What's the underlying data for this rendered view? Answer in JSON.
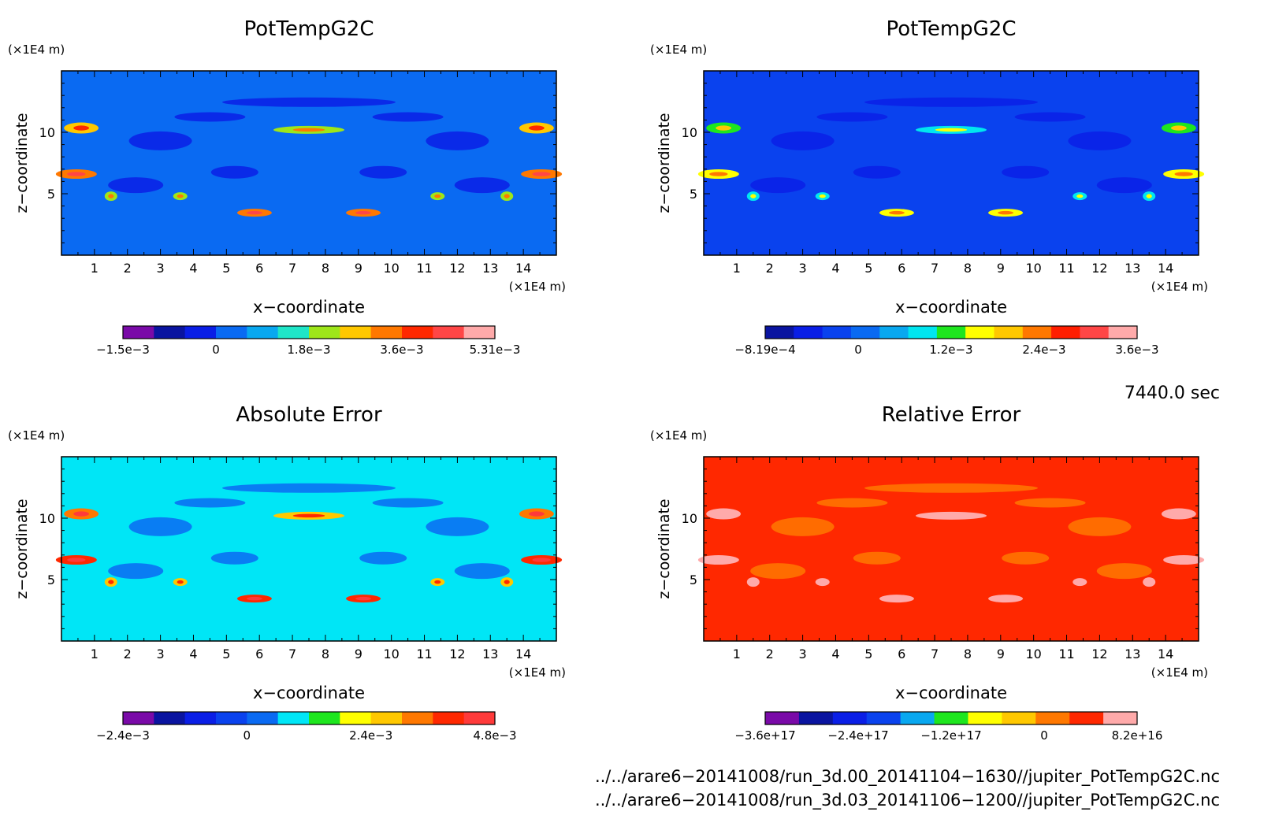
{
  "panels": [
    {
      "title": "PotTempG2C",
      "y_unit": "(×1E4 m)",
      "x_unit": "(×1E4 m)",
      "xlabel": "x−coordinate",
      "ylabel": "z−coordinate",
      "base_color": "#0a6af2",
      "colorbar": {
        "colors": [
          "#7a0aa8",
          "#0a14a0",
          "#0a1ee6",
          "#0a6af2",
          "#09a8f0",
          "#1fe6c8",
          "#9ee61a",
          "#ffc800",
          "#ff7800",
          "#ff2800",
          "#ff4646",
          "#ffaaaa"
        ],
        "labels": [
          "−1.5e−3",
          "0",
          "1.8e−3",
          "3.6e−3",
          "5.31e−3"
        ]
      }
    },
    {
      "title": "PotTempG2C",
      "y_unit": "(×1E4 m)",
      "x_unit": "(×1E4 m)",
      "xlabel": "x−coordinate",
      "ylabel": "z−coordinate",
      "base_color": "#0a42ee",
      "colorbar": {
        "colors": [
          "#0a14a0",
          "#0a1ee6",
          "#0a42ee",
          "#0a6af2",
          "#09a8f0",
          "#00e6f0",
          "#1ee61e",
          "#ffff00",
          "#ffc800",
          "#ff7800",
          "#ff1e00",
          "#ff4646",
          "#ffaaaa"
        ],
        "labels": [
          "−8.19e−4",
          "0",
          "1.2e−3",
          "2.4e−3",
          "3.6e−3"
        ]
      }
    },
    {
      "title": "Absolute Error",
      "y_unit": "(×1E4 m)",
      "x_unit": "(×1E4 m)",
      "xlabel": "x−coordinate",
      "ylabel": "z−coordinate",
      "base_color": "#00e6f6",
      "colorbar": {
        "colors": [
          "#7a0aa8",
          "#0a14a0",
          "#0a1ee6",
          "#0a42ee",
          "#0a6af2",
          "#00e6f6",
          "#1ee61e",
          "#ffff00",
          "#ffc800",
          "#ff7800",
          "#ff2800",
          "#ff3a3a"
        ],
        "labels": [
          "−2.4e−3",
          "0",
          "2.4e−3",
          "4.8e−3"
        ]
      }
    },
    {
      "title": "Relative Error",
      "y_unit": "(×1E4 m)",
      "x_unit": "(×1E4 m)",
      "xlabel": "x−coordinate",
      "ylabel": "z−coordinate",
      "base_color": "#ff2800",
      "colorbar": {
        "colors": [
          "#7a0aa8",
          "#0a14a0",
          "#0a1ee6",
          "#0a42ee",
          "#09a8f0",
          "#1ee61e",
          "#ffff00",
          "#ffc800",
          "#ff7800",
          "#ff2800",
          "#ffaaaa"
        ],
        "labels": [
          "−3.6e+17",
          "−2.4e+17",
          "−1.2e+17",
          "0",
          "8.2e+16"
        ]
      }
    }
  ],
  "time_label": "7440.0 sec",
  "file_paths": [
    "../../arare6−20141008/run_3d.00_20141104−1630//jupiter_PotTempG2C.nc",
    "../../arare6−20141008/run_3d.03_20141106−1200//jupiter_PotTempG2C.nc"
  ],
  "chart_data": [
    {
      "type": "heatmap",
      "title": "PotTempG2C",
      "xlabel": "x−coordinate",
      "ylabel": "z−coordinate",
      "x_ticks": [
        1,
        2,
        3,
        4,
        5,
        6,
        7,
        8,
        9,
        10,
        11,
        12,
        13,
        14
      ],
      "y_ticks": [
        5,
        10
      ],
      "xlim": [
        0,
        15
      ],
      "ylim": [
        0,
        15
      ],
      "colorbar_labels": [
        "−1.5e−3",
        "0",
        "1.8e−3",
        "3.6e−3",
        "5.31e−3"
      ]
    },
    {
      "type": "heatmap",
      "title": "PotTempG2C",
      "xlabel": "x−coordinate",
      "ylabel": "z−coordinate",
      "x_ticks": [
        1,
        2,
        3,
        4,
        5,
        6,
        7,
        8,
        9,
        10,
        11,
        12,
        13,
        14
      ],
      "y_ticks": [
        5,
        10
      ],
      "xlim": [
        0,
        15
      ],
      "ylim": [
        0,
        15
      ],
      "colorbar_labels": [
        "−8.19e−4",
        "0",
        "1.2e−3",
        "2.4e−3",
        "3.6e−3"
      ]
    },
    {
      "type": "heatmap",
      "title": "Absolute Error",
      "xlabel": "x−coordinate",
      "ylabel": "z−coordinate",
      "x_ticks": [
        1,
        2,
        3,
        4,
        5,
        6,
        7,
        8,
        9,
        10,
        11,
        12,
        13,
        14
      ],
      "y_ticks": [
        5,
        10
      ],
      "xlim": [
        0,
        15
      ],
      "ylim": [
        0,
        15
      ],
      "colorbar_labels": [
        "−2.4e−3",
        "0",
        "2.4e−3",
        "4.8e−3"
      ]
    },
    {
      "type": "heatmap",
      "title": "Relative Error",
      "xlabel": "x−coordinate",
      "ylabel": "z−coordinate",
      "x_ticks": [
        1,
        2,
        3,
        4,
        5,
        6,
        7,
        8,
        9,
        10,
        11,
        12,
        13,
        14
      ],
      "y_ticks": [
        5,
        10
      ],
      "xlim": [
        0,
        15
      ],
      "ylim": [
        0,
        15
      ],
      "colorbar_labels": [
        "−3.6e+17",
        "−2.4e+17",
        "−1.2e+17",
        "0",
        "8.2e+16"
      ]
    }
  ]
}
